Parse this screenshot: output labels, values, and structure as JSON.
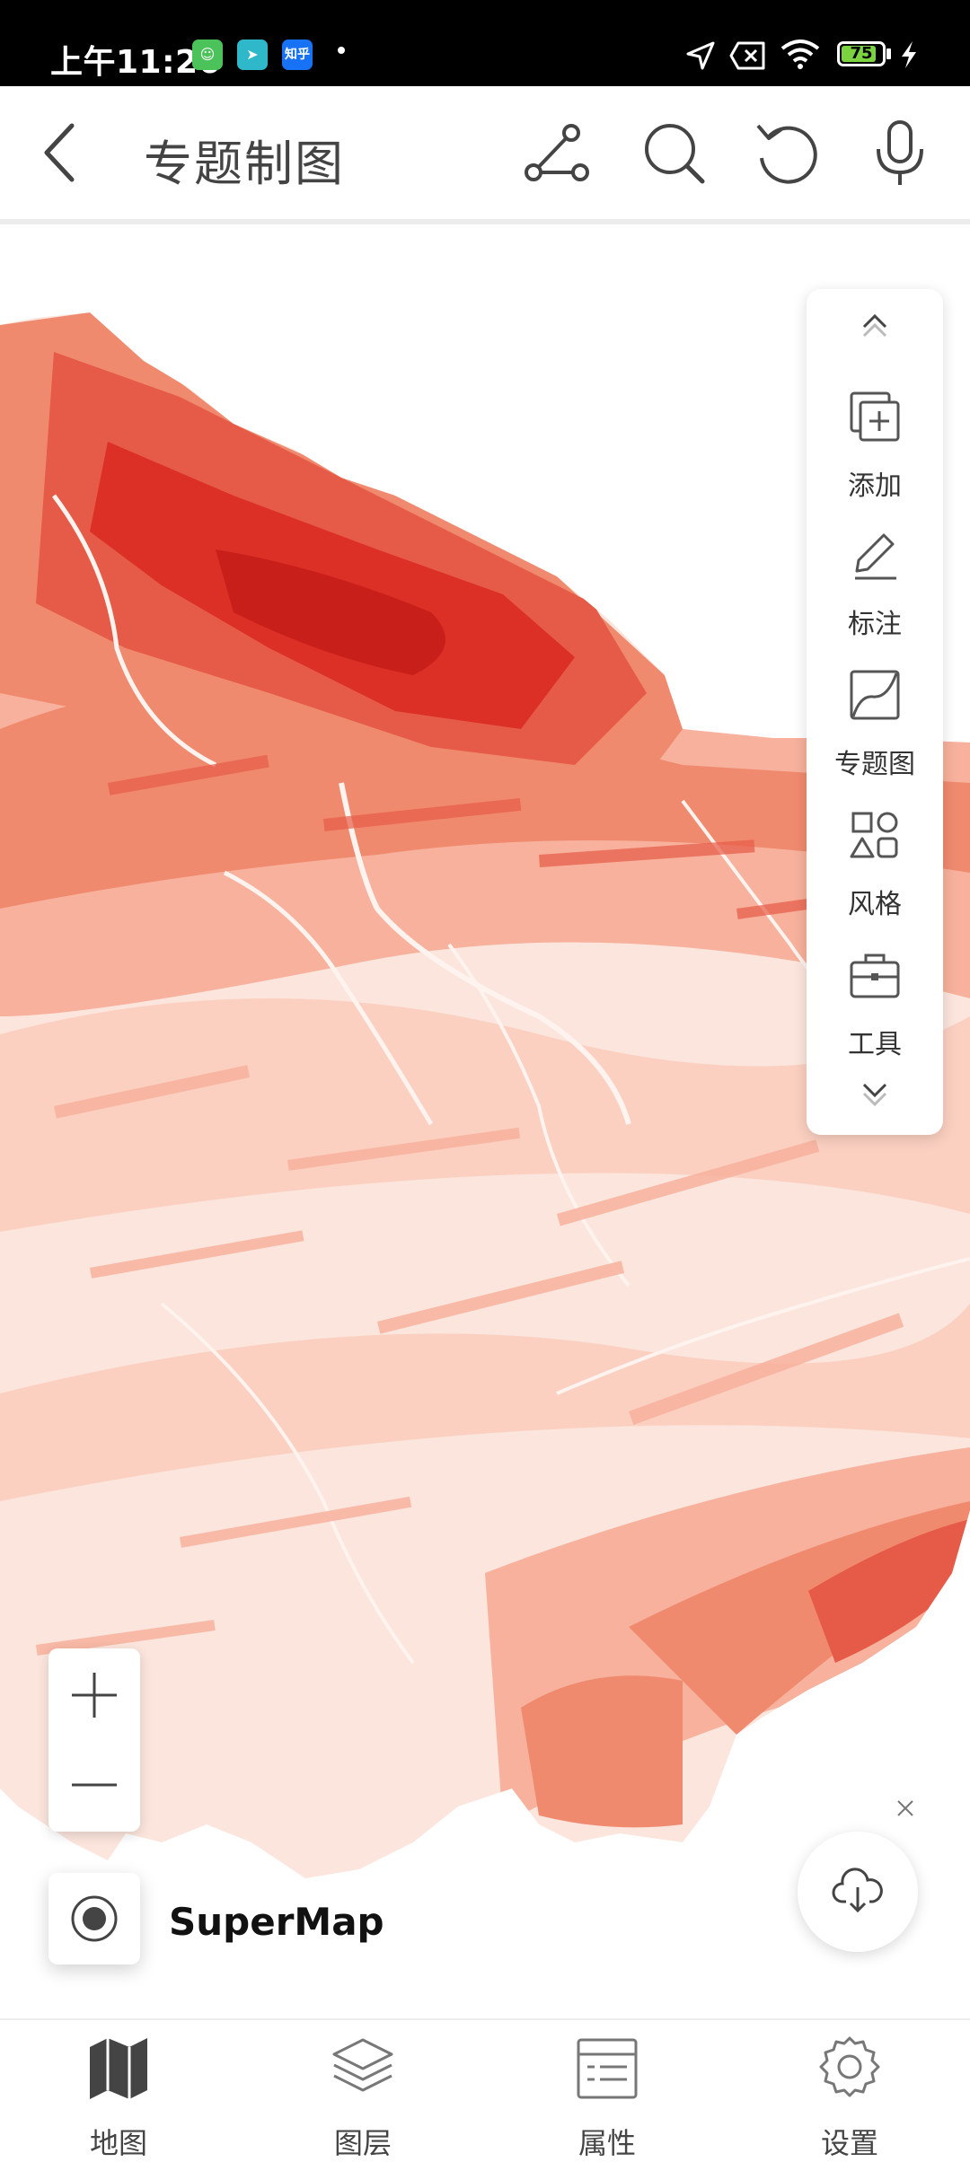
{
  "status": {
    "time": "上午11:26",
    "apps": [
      {
        "name": "cat-app-icon",
        "color": "#4cc35a",
        "text": "😺"
      },
      {
        "name": "paper-plane-app-icon",
        "color": "#2eb8c9",
        "text": "➤"
      },
      {
        "name": "zhihu-app-icon",
        "color": "#1772f6",
        "text": "知乎"
      }
    ],
    "battery": "75"
  },
  "header": {
    "title": "专题制图"
  },
  "toolbar": {
    "items": [
      {
        "label": "添加"
      },
      {
        "label": "标注"
      },
      {
        "label": "专题图"
      },
      {
        "label": "风格"
      },
      {
        "label": "工具"
      }
    ]
  },
  "map": {
    "source_label": "SuperMap",
    "colors": {
      "c1": "#fbe5dc",
      "c2": "#fbd0c1",
      "c3": "#f7b19c",
      "c4": "#f08a6f",
      "c5": "#e65b47",
      "c6": "#dc2f25"
    }
  },
  "bottom_nav": {
    "items": [
      {
        "label": "地图"
      },
      {
        "label": "图层"
      },
      {
        "label": "属性"
      },
      {
        "label": "设置"
      }
    ]
  }
}
